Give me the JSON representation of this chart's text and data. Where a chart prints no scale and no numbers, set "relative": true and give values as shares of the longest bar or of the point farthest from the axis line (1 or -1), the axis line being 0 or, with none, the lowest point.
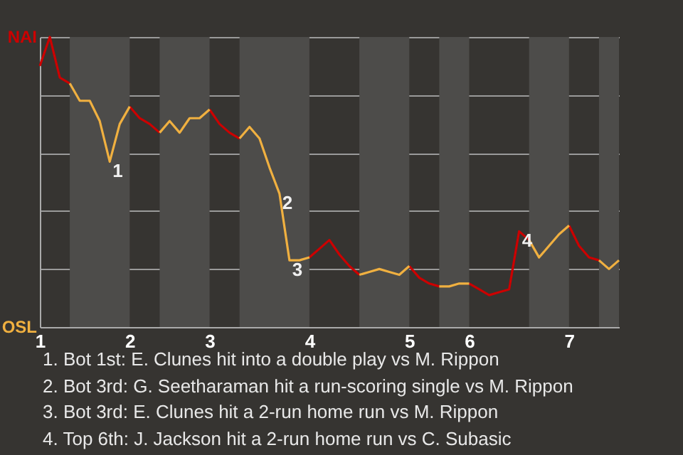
{
  "chart_data": {
    "type": "line",
    "relative": true,
    "categories": [
      "1",
      null,
      null,
      null,
      null,
      null,
      null,
      null,
      null,
      "2",
      null,
      null,
      null,
      null,
      null,
      null,
      null,
      "3",
      null,
      null,
      null,
      null,
      null,
      null,
      null,
      null,
      null,
      "4",
      null,
      null,
      null,
      null,
      null,
      null,
      null,
      null,
      null,
      "5",
      null,
      null,
      null,
      null,
      null,
      "6",
      null,
      null,
      null,
      null,
      null,
      null,
      null,
      null,
      null,
      "7",
      null,
      null,
      null,
      null,
      null
    ],
    "series": [
      {
        "name": "NAI",
        "color": "#cc0000",
        "values": [
          0.9,
          1,
          0.86,
          0.84,
          null,
          null,
          null,
          null,
          null,
          0.76,
          0.72,
          0.7,
          0.67,
          null,
          null,
          null,
          null,
          0.75,
          0.7,
          0.67,
          0.65,
          null,
          null,
          null,
          null,
          null,
          null,
          0.24,
          0.27,
          0.3,
          0.25,
          0.21,
          0.18,
          null,
          null,
          null,
          null,
          0.21,
          0.17,
          0.15,
          0.14,
          null,
          null,
          0.15,
          0.13,
          0.11,
          0.12,
          0.13,
          0.33,
          0.3,
          null,
          null,
          null,
          0.35,
          0.28,
          0.24,
          0.23,
          null,
          null
        ]
      },
      {
        "name": "OSL",
        "color": "#f0b040",
        "values": [
          null,
          null,
          null,
          0.84,
          0.78,
          0.78,
          0.71,
          0.57,
          0.7,
          0.76,
          null,
          null,
          0.67,
          0.71,
          0.67,
          0.72,
          0.72,
          0.75,
          null,
          null,
          0.65,
          0.69,
          0.65,
          0.55,
          0.46,
          0.23,
          0.23,
          0.24,
          null,
          null,
          null,
          null,
          0.18,
          0.19,
          0.2,
          0.19,
          0.18,
          0.21,
          null,
          null,
          0.14,
          0.14,
          0.15,
          0.15,
          null,
          null,
          null,
          null,
          null,
          0.3,
          0.24,
          0.28,
          0.32,
          0.35,
          null,
          null,
          0.23,
          0.2,
          0.23
        ]
      }
    ],
    "grid": "y",
    "annotations": [
      {
        "text": "1",
        "y": 0.57
      },
      {
        "text": "2",
        "y": 0.46
      },
      {
        "text": "3",
        "y": 0.23
      },
      {
        "text": "4",
        "y": 0.33
      },
      "1. Bot 1st: E. Clunes hit into a double play vs M. Rippon",
      "2. Bot 3rd: G. Seetharaman hit a run-scoring single vs M. Rippon",
      "3. Bot 3rd: E. Clunes hit a 2-run home run vs M. Rippon",
      "4. Top 6th: J. Jackson hit a 2-run home run vs C. Subasic"
    ]
  }
}
